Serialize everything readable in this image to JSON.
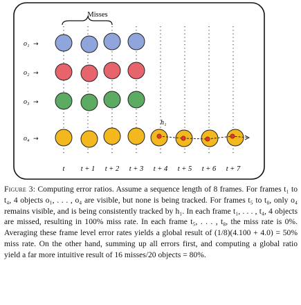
{
  "figure": {
    "brace_label": "Misses",
    "frames": [
      "t",
      "t + 1",
      "t + 2",
      "t + 3",
      "t + 4",
      "t + 5",
      "t + 6",
      "t + 7"
    ],
    "objects": [
      {
        "label": "o₁",
        "color": "#8fa5dc",
        "visible_frames": 4
      },
      {
        "label": "o₂",
        "color": "#e8646c",
        "visible_frames": 4
      },
      {
        "label": "o₃",
        "color": "#5daa62",
        "visible_frames": 4
      },
      {
        "label": "o₄",
        "color": "#f2b81e",
        "visible_frames": 8
      }
    ],
    "hypothesis_label": "h₁",
    "hypothesis_color": "#d93a2a"
  },
  "caption": {
    "label": "Figure 3",
    "text": ": Computing error ratios. Assume a sequence length of 8 frames. For frames t₁ to t₄, 4 objects o₁, . . . , o₄ are visible, but none is being tracked. For frames t₅ to t₈, only o₄ remains visible, and is being consistently tracked by h₁. In each frame t₁, . . . , t₄, 4 objects are missed, resulting in 100% miss rate. In each frame t₅, . . . , t₈, the miss rate is 0%. Averaging these frame level error rates yields a global result of (1/8)(4.100 + 4.0) = 50% miss rate. On the other hand, summing up all errors first, and computing a global ratio yield a far more intuitive result of 16 misses/20 objects = 80%."
  }
}
